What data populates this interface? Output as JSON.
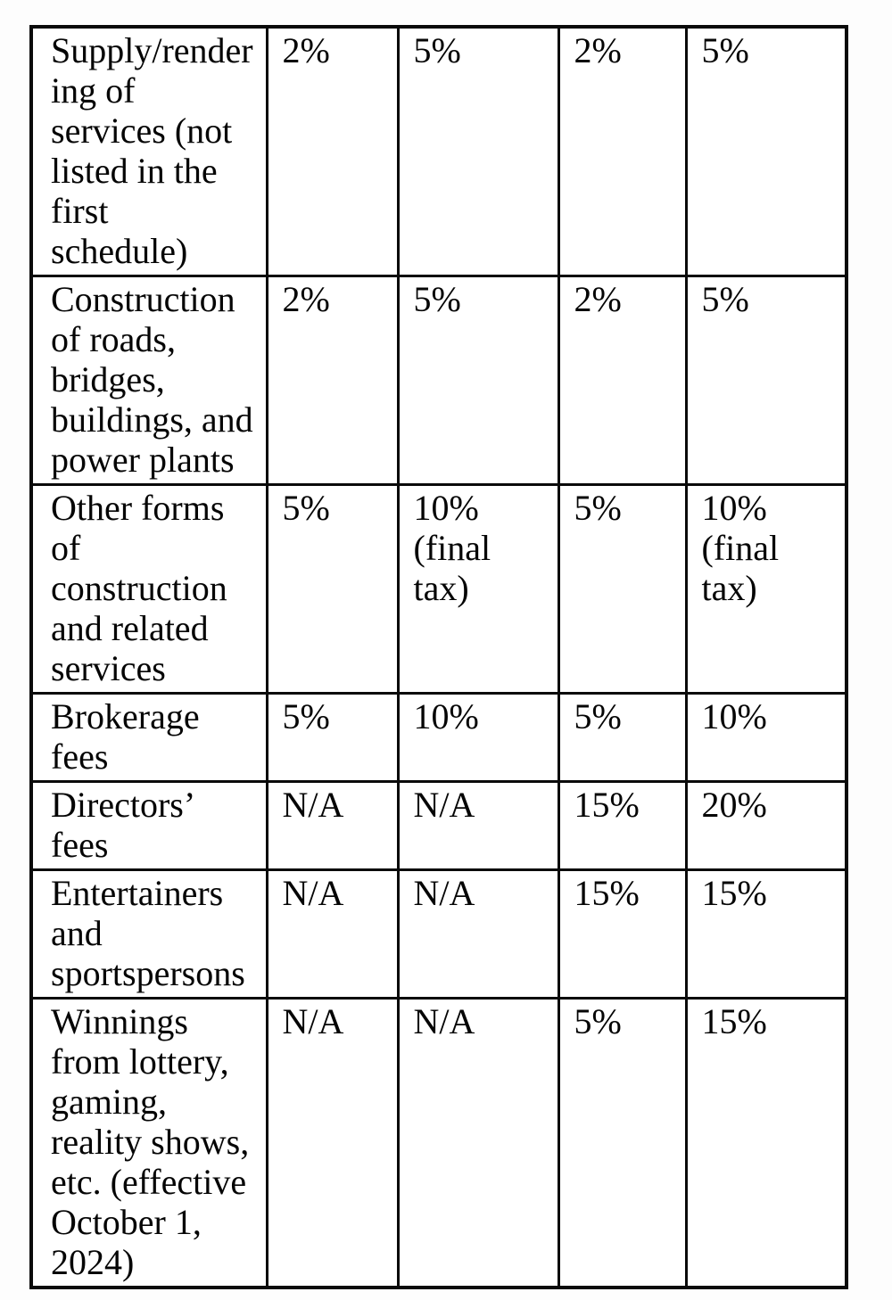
{
  "colors": {
    "background": "#fdfdfd",
    "cell_background": "#ffffff",
    "border": "#0a0a0a",
    "text": "#050505"
  },
  "table": {
    "rows": [
      {
        "label": "Supply/render\ning of\nservices (not\nlisted in the\nfirst\nschedule)",
        "values": [
          "2%",
          "5%",
          "2%",
          "5%"
        ]
      },
      {
        "label": "Construction\nof roads,\nbridges,\nbuildings, and\npower plants",
        "values": [
          "2%",
          "5%",
          "2%",
          "5%"
        ]
      },
      {
        "label": "Other forms\nof\nconstruction\nand related\nservices",
        "values": [
          "5%",
          "10%\n(final\ntax)",
          "5%",
          "10%\n(final\ntax)"
        ]
      },
      {
        "label": "Brokerage\nfees",
        "values": [
          "5%",
          "10%",
          "5%",
          "10%"
        ]
      },
      {
        "label": "Directors’\nfees",
        "values": [
          "N/A",
          "N/A",
          "15%",
          "20%"
        ]
      },
      {
        "label": "Entertainers\nand\nsportspersons",
        "values": [
          "N/A",
          "N/A",
          "15%",
          "15%"
        ]
      },
      {
        "label": "Winnings\nfrom lottery,\ngaming,\nreality shows,\netc. (effective\nOctober 1,\n2024)",
        "values": [
          "N/A",
          "N/A",
          "5%",
          "15%"
        ]
      }
    ]
  }
}
